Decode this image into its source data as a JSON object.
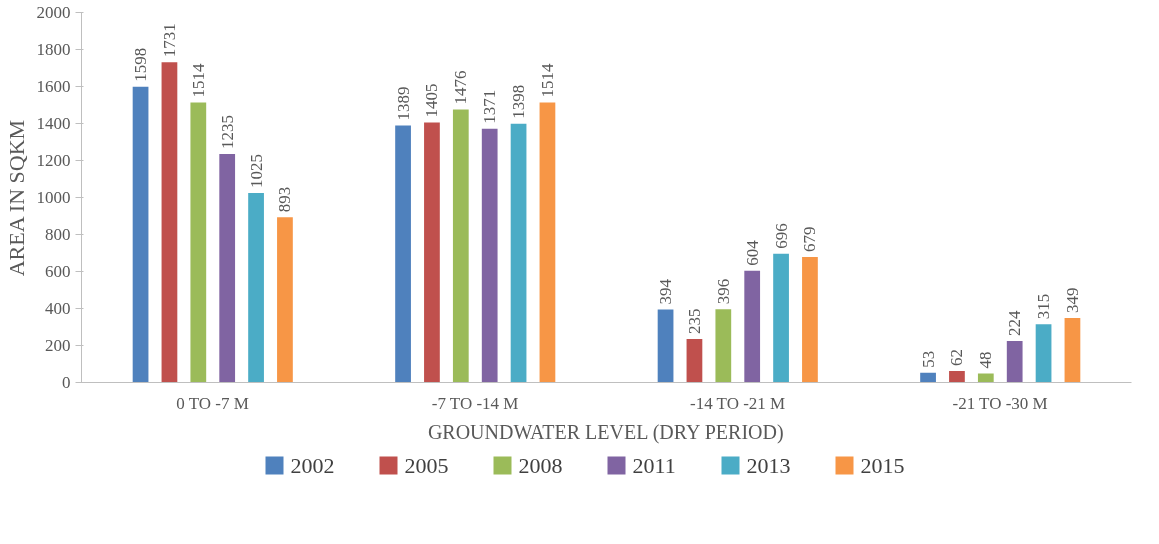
{
  "chart_data": {
    "type": "bar",
    "xlabel": "GROUNDWATER LEVEL (DRY PERIOD)",
    "ylabel": "AREA IN SQKM",
    "categories": [
      "0 TO -7 M",
      "-7 TO -14 M",
      "-14 TO -21 M",
      "-21 TO -30 M"
    ],
    "series": [
      {
        "name": "2002",
        "color": "#4f81bd",
        "values": [
          1598,
          1389,
          394,
          53
        ]
      },
      {
        "name": "2005",
        "color": "#c0504d",
        "values": [
          1731,
          1405,
          235,
          62
        ]
      },
      {
        "name": "2008",
        "color": "#9bbb59",
        "values": [
          1514,
          1476,
          396,
          48
        ]
      },
      {
        "name": "2011",
        "color": "#8064a2",
        "values": [
          1235,
          1371,
          604,
          224
        ]
      },
      {
        "name": "2013",
        "color": "#4bacc6",
        "values": [
          1025,
          1398,
          696,
          315
        ]
      },
      {
        "name": "2015",
        "color": "#f79646",
        "values": [
          893,
          1514,
          679,
          349
        ]
      }
    ],
    "ylim": [
      0,
      2000
    ],
    "yticks": [
      0,
      200,
      400,
      600,
      800,
      1000,
      1200,
      1400,
      1600,
      1800,
      2000
    ],
    "data_labels": true,
    "grid": false,
    "legend": "bottom"
  }
}
